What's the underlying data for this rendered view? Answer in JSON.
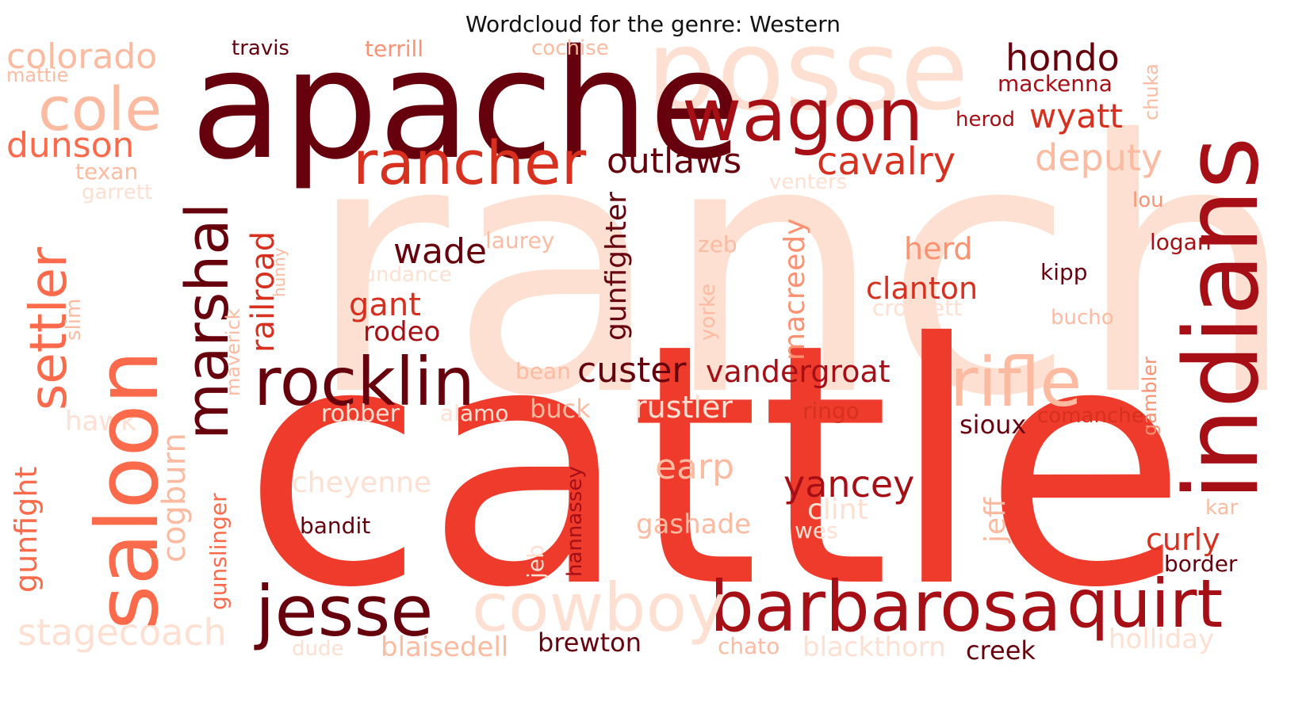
{
  "title": "Wordcloud for the genre: Western",
  "palette": {
    "darkest": "#67000d",
    "dark": "#a50f15",
    "mid": "#d7301f",
    "red": "#ef3b2c",
    "salmon": "#fb6a4a",
    "light": "#fc9272",
    "pale": "#fcbba1",
    "faint": "#fee0d2"
  },
  "words": [
    {
      "text": "ranch",
      "shade": "faint"
    },
    {
      "text": "cattle",
      "shade": "red"
    },
    {
      "text": "apache",
      "shade": "darkest"
    },
    {
      "text": "posse",
      "shade": "faint"
    },
    {
      "text": "indians",
      "shade": "dark"
    },
    {
      "text": "saloon",
      "shade": "salmon"
    },
    {
      "text": "marshal",
      "shade": "darkest"
    },
    {
      "text": "wagon",
      "shade": "dark"
    },
    {
      "text": "rancher",
      "shade": "mid"
    },
    {
      "text": "cole",
      "shade": "pale"
    },
    {
      "text": "settler",
      "shade": "salmon"
    },
    {
      "text": "rocklin",
      "shade": "darkest"
    },
    {
      "text": "rifle",
      "shade": "pale"
    },
    {
      "text": "barbarosa",
      "shade": "dark"
    },
    {
      "text": "jesse",
      "shade": "darkest"
    },
    {
      "text": "cowboy",
      "shade": "faint"
    },
    {
      "text": "quirt",
      "shade": "dark"
    },
    {
      "text": "hondo",
      "shade": "darkest"
    },
    {
      "text": "colorado",
      "shade": "pale"
    },
    {
      "text": "dunson",
      "shade": "salmon"
    },
    {
      "text": "outlaws",
      "shade": "darkest"
    },
    {
      "text": "cavalry",
      "shade": "mid"
    },
    {
      "text": "wyatt",
      "shade": "mid"
    },
    {
      "text": "deputy",
      "shade": "pale"
    },
    {
      "text": "custer",
      "shade": "darkest"
    },
    {
      "text": "vandergroat",
      "shade": "dark"
    },
    {
      "text": "gunfight",
      "shade": "salmon"
    },
    {
      "text": "stagecoach",
      "shade": "faint"
    },
    {
      "text": "cogburn",
      "shade": "pale"
    },
    {
      "text": "gunslinger",
      "shade": "salmon"
    },
    {
      "text": "railroad",
      "shade": "mid"
    },
    {
      "text": "gunfighter",
      "shade": "darkest"
    },
    {
      "text": "macreedy",
      "shade": "light"
    },
    {
      "text": "wade",
      "shade": "darkest"
    },
    {
      "text": "gant",
      "shade": "mid"
    },
    {
      "text": "rodeo",
      "shade": "dark"
    },
    {
      "text": "clanton",
      "shade": "mid"
    },
    {
      "text": "herd",
      "shade": "light"
    },
    {
      "text": "yancey",
      "shade": "dark"
    },
    {
      "text": "earp",
      "shade": "pale"
    },
    {
      "text": "cheyenne",
      "shade": "faint"
    },
    {
      "text": "gashade",
      "shade": "pale"
    },
    {
      "text": "bandit",
      "shade": "darkest"
    },
    {
      "text": "blaisedell",
      "shade": "pale"
    },
    {
      "text": "brewton",
      "shade": "darkest"
    },
    {
      "text": "curly",
      "shade": "mid"
    },
    {
      "text": "border",
      "shade": "darkest"
    },
    {
      "text": "holliday",
      "shade": "faint"
    },
    {
      "text": "creek",
      "shade": "darkest"
    },
    {
      "text": "blackthorn",
      "shade": "faint"
    },
    {
      "text": "sioux",
      "shade": "darkest"
    },
    {
      "text": "comanche",
      "shade": "mid"
    },
    {
      "text": "ringo",
      "shade": "mid"
    },
    {
      "text": "rustler",
      "shade": "faint"
    },
    {
      "text": "buck",
      "shade": "pale"
    },
    {
      "text": "alamo",
      "shade": "faint"
    },
    {
      "text": "robber",
      "shade": "faint"
    },
    {
      "text": "hawk",
      "shade": "faint"
    },
    {
      "text": "bean",
      "shade": "pale"
    },
    {
      "text": "texan",
      "shade": "pale"
    },
    {
      "text": "garrett",
      "shade": "faint"
    },
    {
      "text": "mattie",
      "shade": "pale"
    },
    {
      "text": "travis",
      "shade": "darkest"
    },
    {
      "text": "terrill",
      "shade": "light"
    },
    {
      "text": "cochise",
      "shade": "pale"
    },
    {
      "text": "mackenna",
      "shade": "dark"
    },
    {
      "text": "herod",
      "shade": "dark"
    },
    {
      "text": "chuka",
      "shade": "pale"
    },
    {
      "text": "lou",
      "shade": "light"
    },
    {
      "text": "logan",
      "shade": "dark"
    },
    {
      "text": "kipp",
      "shade": "darkest"
    },
    {
      "text": "bucho",
      "shade": "pale"
    },
    {
      "text": "gambler",
      "shade": "light"
    },
    {
      "text": "laurey",
      "shade": "pale"
    },
    {
      "text": "sundance",
      "shade": "faint"
    },
    {
      "text": "venters",
      "shade": "faint"
    },
    {
      "text": "zeb",
      "shade": "pale"
    },
    {
      "text": "crockett",
      "shade": "faint"
    },
    {
      "text": "yorke",
      "shade": "pale"
    },
    {
      "text": "maverick",
      "shade": "pale"
    },
    {
      "text": "slim",
      "shade": "pale"
    },
    {
      "text": "hunny",
      "shade": "pale"
    },
    {
      "text": "jeff",
      "shade": "pale"
    },
    {
      "text": "hannassey",
      "shade": "dark"
    },
    {
      "text": "clint",
      "shade": "faint"
    },
    {
      "text": "wes",
      "shade": "faint"
    },
    {
      "text": "jeb",
      "shade": "faint"
    },
    {
      "text": "kar",
      "shade": "pale"
    },
    {
      "text": "dude",
      "shade": "faint"
    },
    {
      "text": "chato",
      "shade": "pale"
    }
  ]
}
